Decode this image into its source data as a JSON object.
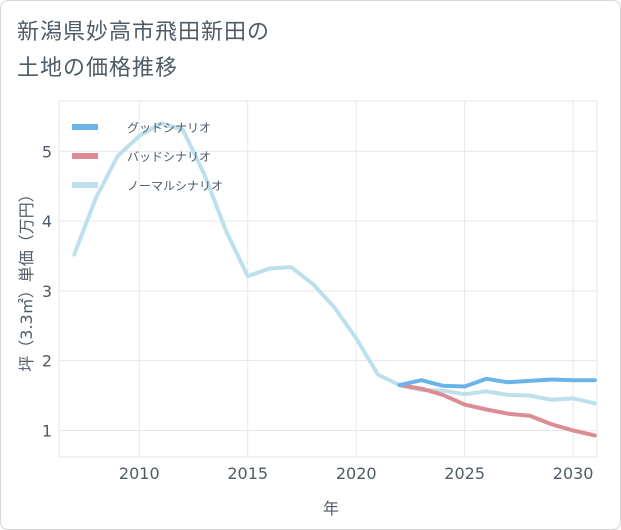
{
  "chart_data": {
    "type": "line",
    "title_lines": [
      "新潟県妙高市飛田新田の",
      "土地の価格推移"
    ],
    "xlabel": "年",
    "ylabel": "坪（3.3㎡）単価（万円）",
    "xlim": [
      2006.3,
      2031.1
    ],
    "ylim": [
      0.62,
      5.72
    ],
    "xticks": [
      2010,
      2015,
      2020,
      2025,
      2030
    ],
    "yticks": [
      1,
      2,
      3,
      4,
      5
    ],
    "grid": true,
    "legend_position": "top-left",
    "series": [
      {
        "name": "グッドシナリオ",
        "color": "#6ab4ea",
        "x": [
          2022,
          2023,
          2024,
          2025,
          2026,
          2027,
          2028,
          2029,
          2030,
          2031
        ],
        "y": [
          1.65,
          1.72,
          1.64,
          1.63,
          1.74,
          1.69,
          1.71,
          1.73,
          1.72,
          1.72
        ]
      },
      {
        "name": "バッドシナリオ",
        "color": "#dc8c94",
        "x": [
          2022,
          2023,
          2024,
          2025,
          2026,
          2027,
          2028,
          2029,
          2030,
          2031
        ],
        "y": [
          1.65,
          1.6,
          1.51,
          1.37,
          1.3,
          1.24,
          1.21,
          1.09,
          1.0,
          0.93
        ]
      },
      {
        "name": "ノーマルシナリオ",
        "color": "#bde0ec",
        "x": [
          2007,
          2008,
          2009,
          2010,
          2011,
          2012,
          2013,
          2014,
          2015,
          2016,
          2017,
          2018,
          2019,
          2020,
          2021,
          2022,
          2023,
          2024,
          2025,
          2026,
          2027,
          2028,
          2029,
          2030,
          2031
        ],
        "y": [
          3.52,
          4.33,
          4.93,
          5.22,
          5.4,
          5.31,
          4.67,
          3.86,
          3.21,
          3.32,
          3.34,
          3.1,
          2.76,
          2.32,
          1.8,
          1.65,
          1.58,
          1.57,
          1.52,
          1.56,
          1.51,
          1.5,
          1.44,
          1.46,
          1.39
        ]
      }
    ]
  }
}
